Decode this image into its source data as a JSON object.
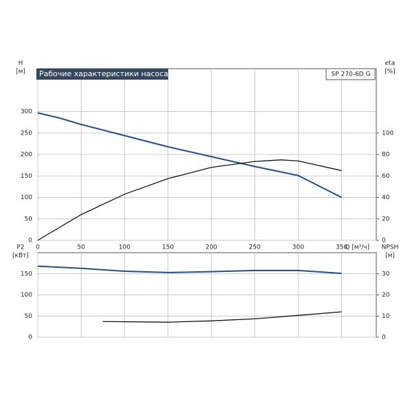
{
  "chart_data": [
    {
      "type": "line",
      "title": "Рабочие характеристики насоса",
      "model": "SP 270-6D G",
      "ylabel": [
        "H",
        "[м]"
      ],
      "y2label": [
        "eta",
        "[%]"
      ],
      "xlabel": "Q [м³/ч]",
      "xlim": [
        0,
        390
      ],
      "xticks": [
        0,
        50,
        100,
        150,
        200,
        250,
        300,
        350
      ],
      "xtick_labels": true,
      "ylim": [
        0,
        400
      ],
      "yticks": [
        0,
        50,
        100,
        150,
        200,
        250,
        300
      ],
      "y2lim": [
        0,
        160
      ],
      "y2ticks": [
        0,
        20,
        40,
        60,
        80,
        100
      ],
      "grid": true,
      "series": [
        {
          "name": "H",
          "color": "#1f4e8c",
          "x": [
            0,
            25,
            50,
            100,
            150,
            200,
            250,
            300,
            350
          ],
          "values": [
            297,
            285,
            270,
            244,
            218,
            195,
            172,
            151,
            100
          ]
        },
        {
          "name": "eta",
          "axis": "y2",
          "color": "#111111",
          "x": [
            0,
            50,
            100,
            150,
            200,
            250,
            280,
            300,
            350
          ],
          "values": [
            0,
            24,
            43,
            57.5,
            68,
            73.5,
            75,
            74,
            65
          ]
        }
      ]
    },
    {
      "type": "line",
      "ylabel": [
        "P2",
        "[кВт]"
      ],
      "y2label": [
        "NPSH",
        "[м]"
      ],
      "xlim": [
        0,
        390
      ],
      "xticks": [
        0,
        50,
        100,
        150,
        200,
        250,
        300,
        350
      ],
      "ylim": [
        0,
        200
      ],
      "yticks": [
        0,
        50,
        100,
        150
      ],
      "y2lim": [
        0,
        40
      ],
      "y2ticks": [
        0,
        10,
        20,
        30
      ],
      "grid": true,
      "series": [
        {
          "name": "P2",
          "color": "#1f4e8c",
          "x": [
            0,
            50,
            100,
            150,
            200,
            250,
            300,
            350
          ],
          "values": [
            168,
            163,
            156,
            153,
            155,
            158,
            158,
            151
          ]
        },
        {
          "name": "NPSH",
          "axis": "y2",
          "color": "#111111",
          "x": [
            75,
            150,
            200,
            250,
            300,
            350
          ],
          "values": [
            7.4,
            7.1,
            7.7,
            8.7,
            10.3,
            12
          ]
        }
      ]
    }
  ]
}
